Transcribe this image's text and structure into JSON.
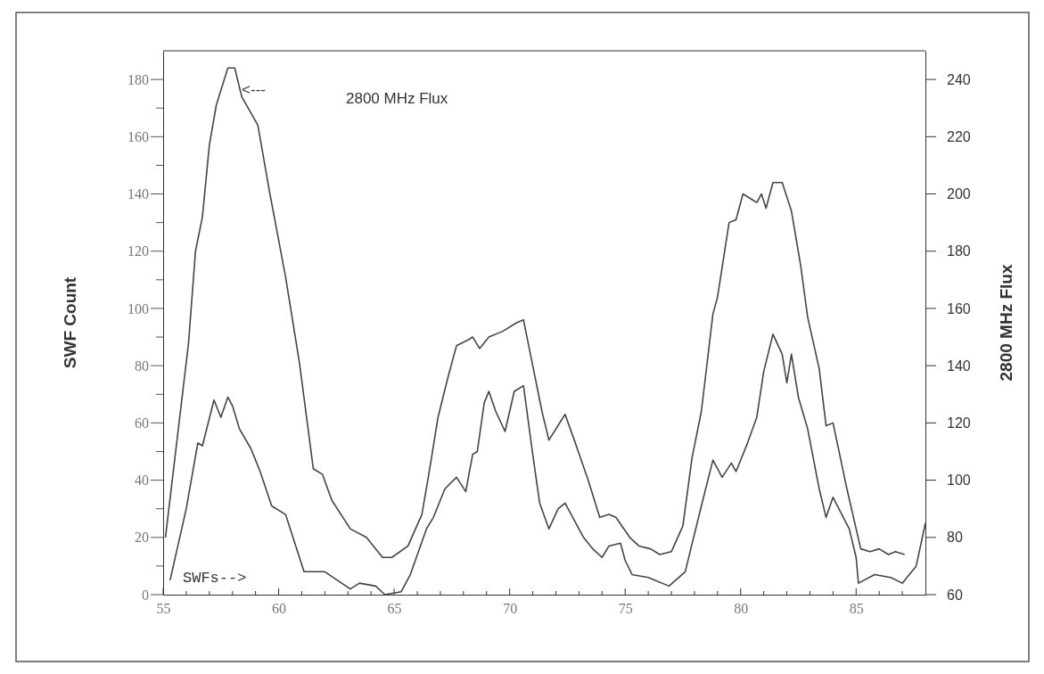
{
  "chart_data": {
    "type": "line",
    "ylabel": "SWF Count",
    "y2label": "2800 MHz Flux",
    "xlim": [
      55,
      88
    ],
    "xticks": [
      55,
      {
        "value": 56,
        "label": null
      },
      {
        "value": 57,
        "label": null
      },
      {
        "value": 58,
        "label": null
      },
      {
        "value": 59,
        "label": null
      },
      60,
      {
        "value": 61,
        "label": null
      },
      {
        "value": 62,
        "label": null
      },
      {
        "value": 63,
        "label": null
      },
      {
        "value": 64,
        "label": null
      },
      65,
      {
        "value": 66,
        "label": null
      },
      {
        "value": 67,
        "label": null
      },
      {
        "value": 68,
        "label": null
      },
      {
        "value": 69,
        "label": null
      },
      70,
      {
        "value": 71,
        "label": null
      },
      {
        "value": 72,
        "label": null
      },
      {
        "value": 73,
        "label": null
      },
      {
        "value": 74,
        "label": null
      },
      75,
      {
        "value": 76,
        "label": null
      },
      {
        "value": 77,
        "label": null
      },
      {
        "value": 78,
        "label": null
      },
      {
        "value": 79,
        "label": null
      },
      80,
      {
        "value": 81,
        "label": null
      },
      {
        "value": 82,
        "label": null
      },
      {
        "value": 83,
        "label": null
      },
      {
        "value": 84,
        "label": null
      },
      85,
      {
        "value": 86,
        "label": null
      },
      {
        "value": 87,
        "label": null
      }
    ],
    "ylim": [
      0,
      190
    ],
    "yticks": [
      0,
      {
        "value": 10,
        "label": null
      },
      20,
      {
        "value": 30,
        "label": null
      },
      40,
      {
        "value": 50,
        "label": null
      },
      60,
      {
        "value": 70,
        "label": null
      },
      80,
      {
        "value": 90,
        "label": null
      },
      100,
      {
        "value": 110,
        "label": null
      },
      120,
      {
        "value": 130,
        "label": null
      },
      140,
      {
        "value": 150,
        "label": null
      },
      160,
      {
        "value": 170,
        "label": null
      },
      180
    ],
    "y2lim": [
      60,
      250
    ],
    "y2ticks": [
      60,
      80,
      100,
      120,
      140,
      160,
      180,
      200,
      220,
      240
    ],
    "marker": "none",
    "line_style": "solid",
    "series": [
      {
        "color": "#444444",
        "axis": "y2",
        "x": [
          55.1,
          55.6,
          56.1,
          56.4,
          56.7,
          57.0,
          57.3,
          57.8,
          58.1,
          58.4,
          59.1,
          59.6,
          60.3,
          60.9,
          61.5,
          61.9,
          62.3,
          63.1,
          63.8,
          64.5,
          64.9,
          65.6,
          66.2,
          66.5,
          66.9,
          67.3,
          67.7,
          68.2,
          68.4,
          68.7,
          69.1,
          69.7,
          70.3,
          70.6,
          71.0,
          71.4,
          71.7,
          72.4,
          72.8,
          73.4,
          73.9,
          74.3,
          74.6,
          75.2,
          75.6,
          76.1,
          76.5,
          77.0,
          77.5,
          77.9,
          78.3,
          78.8,
          79.0,
          79.5,
          79.8,
          80.1,
          80.5,
          80.7,
          80.9,
          81.1,
          81.4,
          81.8,
          82.2,
          82.6,
          82.9,
          83.4,
          83.7,
          84.0,
          84.6,
          85.0,
          85.2,
          85.6,
          86.0,
          86.4,
          86.7,
          87.1
        ],
        "values": [
          80,
          114,
          148,
          180,
          192,
          217,
          231,
          244,
          244,
          234,
          224,
          201,
          171,
          141,
          104,
          102,
          93,
          83,
          80,
          73,
          73,
          77,
          88,
          102,
          122,
          135,
          147,
          149,
          150,
          146,
          150,
          152,
          155,
          156,
          140,
          124,
          114,
          123,
          114,
          100,
          87,
          88,
          87,
          80,
          77,
          76,
          74,
          75,
          84,
          108,
          124,
          158,
          164,
          190,
          191,
          200,
          198,
          197,
          200,
          195,
          204,
          204,
          194,
          175,
          157,
          139,
          119,
          120,
          97,
          83,
          76,
          75,
          76,
          74,
          75,
          74
        ]
      },
      {
        "color": "#444444",
        "x": [
          55.3,
          56.0,
          56.5,
          56.7,
          57.2,
          57.5,
          57.8,
          58.0,
          58.3,
          58.8,
          59.2,
          59.7,
          60.3,
          60.9,
          61.1,
          62.0,
          63.1,
          63.5,
          64.2,
          64.6,
          65.3,
          65.7,
          66.4,
          66.7,
          67.2,
          67.7,
          68.1,
          68.4,
          68.6,
          68.9,
          69.1,
          69.4,
          69.8,
          70.2,
          70.6,
          71.0,
          71.3,
          71.7,
          72.1,
          72.4,
          72.8,
          73.2,
          73.6,
          74.0,
          74.3,
          74.8,
          75.0,
          75.3,
          76.0,
          76.9,
          77.6,
          78.3,
          78.8,
          79.2,
          79.6,
          79.8,
          80.3,
          80.7,
          81.0,
          81.4,
          81.8,
          82.0,
          82.2,
          82.5,
          82.9,
          83.4,
          83.7,
          84.0,
          84.7,
          85.0,
          85.1,
          85.8,
          86.5,
          87.0,
          87.6,
          88.0
        ],
        "values": [
          5,
          30,
          53,
          52,
          68,
          62,
          69,
          66,
          58,
          51,
          43,
          31,
          28,
          13,
          8,
          8,
          2,
          4,
          3,
          0,
          1,
          7,
          23,
          27,
          37,
          41,
          36,
          49,
          50,
          67,
          71,
          64,
          57,
          71,
          73,
          49,
          32,
          23,
          30,
          32,
          26,
          20,
          16,
          13,
          17,
          18,
          12,
          7,
          6,
          3,
          8,
          31,
          47,
          41,
          46,
          43,
          53,
          62,
          78,
          91,
          84,
          74,
          84,
          69,
          58,
          37,
          27,
          34,
          23,
          13,
          4,
          7,
          6,
          4,
          10,
          25
        ]
      }
    ],
    "annotations": [
      {
        "text": "<---",
        "x": 58.4,
        "y": 176
      },
      "2800 MHz Flux",
      "SWFs-->"
    ]
  }
}
